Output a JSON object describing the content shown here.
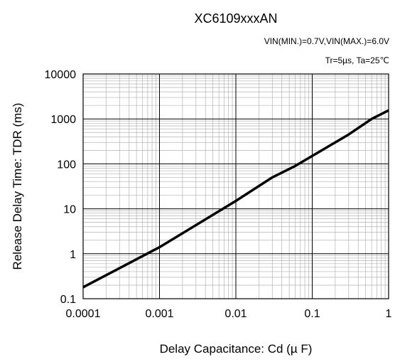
{
  "chart_data": {
    "type": "line",
    "title": "XC6109xxxAN",
    "subtitle_lines": [
      "VIN(MIN.)=0.7V,VIN(MAX.)=6.0V",
      "Tr=5µs, Ta=25℃"
    ],
    "xlabel": "Delay Capacitance: Cd (µ F)",
    "ylabel": "Release Delay Time: TDR (ms)",
    "x_scale": "log",
    "y_scale": "log",
    "xlim": [
      0.0001,
      1
    ],
    "ylim": [
      0.1,
      10000
    ],
    "x_ticks": [
      {
        "value": 0.0001,
        "label": "0.0001"
      },
      {
        "value": 0.001,
        "label": "0.001"
      },
      {
        "value": 0.01,
        "label": "0.01"
      },
      {
        "value": 0.1,
        "label": "0.1"
      },
      {
        "value": 1,
        "label": "1"
      }
    ],
    "y_ticks": [
      {
        "value": 0.1,
        "label": "0.1"
      },
      {
        "value": 1,
        "label": "1"
      },
      {
        "value": 10,
        "label": "10"
      },
      {
        "value": 100,
        "label": "100"
      },
      {
        "value": 1000,
        "label": "1000"
      },
      {
        "value": 10000,
        "label": "10000"
      }
    ],
    "grid": true,
    "minor_grid": true,
    "series": [
      {
        "color": "#000000",
        "x": [
          0.0001,
          0.001,
          0.01,
          0.03,
          0.06,
          0.1,
          0.3,
          0.6,
          1
        ],
        "y": [
          0.18,
          1.4,
          15,
          50,
          90,
          150,
          450,
          1000,
          1550
        ]
      }
    ]
  }
}
